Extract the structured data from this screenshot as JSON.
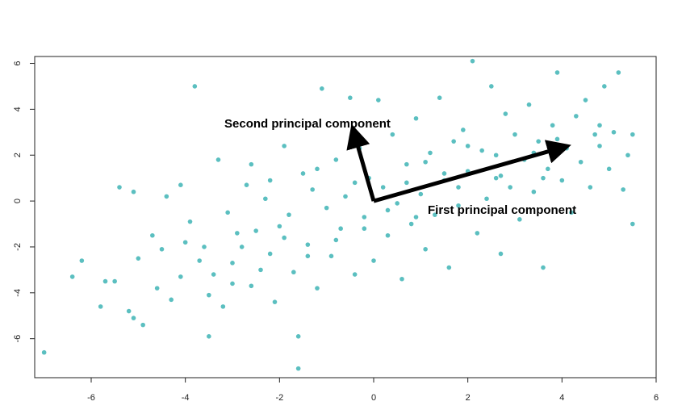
{
  "chart_data": {
    "type": "scatter",
    "xlim": [
      -7.2,
      6.0
    ],
    "ylim": [
      -7.7,
      6.3
    ],
    "x_ticks": [
      -6,
      -4,
      -2,
      0,
      2,
      4,
      6
    ],
    "y_ticks": [
      -6,
      -4,
      -2,
      0,
      2,
      4,
      6
    ],
    "point_color": "#5bbfc0",
    "arrow_color": "#000000",
    "grid": false,
    "series": [
      {
        "values": [
          [
            -7.0,
            -6.6
          ],
          [
            -6.4,
            -3.3
          ],
          [
            -6.2,
            -2.6
          ],
          [
            -5.8,
            -4.6
          ],
          [
            -5.7,
            -3.5
          ],
          [
            -5.5,
            -3.5
          ],
          [
            -5.4,
            0.6
          ],
          [
            -5.2,
            -4.8
          ],
          [
            -5.1,
            -5.1
          ],
          [
            -4.9,
            -5.4
          ],
          [
            -5.0,
            -2.5
          ],
          [
            -5.1,
            0.4
          ],
          [
            -4.7,
            -1.5
          ],
          [
            -4.6,
            -3.8
          ],
          [
            -4.5,
            -2.1
          ],
          [
            -4.4,
            0.2
          ],
          [
            -4.3,
            -4.3
          ],
          [
            -4.1,
            -3.3
          ],
          [
            -4.0,
            -1.8
          ],
          [
            -4.1,
            0.7
          ],
          [
            -3.8,
            5.0
          ],
          [
            -3.9,
            -0.9
          ],
          [
            -3.6,
            -2.0
          ],
          [
            -3.5,
            -4.1
          ],
          [
            -3.4,
            -3.2
          ],
          [
            -3.5,
            -5.9
          ],
          [
            -3.3,
            1.8
          ],
          [
            -3.1,
            -0.5
          ],
          [
            -3.0,
            -2.7
          ],
          [
            -3.0,
            -3.6
          ],
          [
            -2.8,
            -2.0
          ],
          [
            -2.7,
            0.7
          ],
          [
            -2.6,
            1.6
          ],
          [
            -2.5,
            -1.3
          ],
          [
            -2.4,
            -3.0
          ],
          [
            -2.3,
            0.1
          ],
          [
            -2.2,
            -2.3
          ],
          [
            -2.1,
            -4.4
          ],
          [
            -2.0,
            -1.1
          ],
          [
            -1.9,
            2.4
          ],
          [
            -1.8,
            -0.6
          ],
          [
            -1.7,
            -3.1
          ],
          [
            -1.6,
            -5.9
          ],
          [
            -1.6,
            -7.3
          ],
          [
            -1.5,
            1.2
          ],
          [
            -1.4,
            -1.9
          ],
          [
            -1.3,
            0.5
          ],
          [
            -1.2,
            -3.8
          ],
          [
            -1.1,
            4.9
          ],
          [
            -1.0,
            -0.3
          ],
          [
            -0.9,
            -2.4
          ],
          [
            -0.8,
            1.8
          ],
          [
            -0.7,
            -1.2
          ],
          [
            -0.6,
            0.2
          ],
          [
            -0.5,
            4.5
          ],
          [
            -0.4,
            -3.2
          ],
          [
            -0.3,
            2.3
          ],
          [
            -0.2,
            -0.7
          ],
          [
            -0.1,
            1.0
          ],
          [
            0.0,
            -2.6
          ],
          [
            0.1,
            4.4
          ],
          [
            0.2,
            0.6
          ],
          [
            0.3,
            -1.5
          ],
          [
            0.4,
            2.9
          ],
          [
            0.5,
            -0.1
          ],
          [
            0.6,
            -3.4
          ],
          [
            0.7,
            1.6
          ],
          [
            0.8,
            -1.0
          ],
          [
            0.9,
            3.6
          ],
          [
            1.0,
            0.3
          ],
          [
            1.1,
            -2.1
          ],
          [
            1.2,
            2.1
          ],
          [
            1.3,
            -0.6
          ],
          [
            1.4,
            4.5
          ],
          [
            1.5,
            0.9
          ],
          [
            1.6,
            -2.9
          ],
          [
            1.7,
            2.6
          ],
          [
            1.8,
            -0.2
          ],
          [
            1.9,
            3.1
          ],
          [
            2.0,
            1.3
          ],
          [
            2.1,
            6.1
          ],
          [
            2.2,
            -1.4
          ],
          [
            2.3,
            2.2
          ],
          [
            2.4,
            0.1
          ],
          [
            2.5,
            5.0
          ],
          [
            2.6,
            1.0
          ],
          [
            2.7,
            -2.3
          ],
          [
            2.8,
            3.8
          ],
          [
            2.9,
            0.6
          ],
          [
            3.0,
            2.9
          ],
          [
            3.1,
            -0.8
          ],
          [
            3.2,
            1.8
          ],
          [
            3.3,
            4.2
          ],
          [
            3.4,
            0.4
          ],
          [
            3.5,
            2.6
          ],
          [
            3.6,
            -2.9
          ],
          [
            3.7,
            1.4
          ],
          [
            3.8,
            3.3
          ],
          [
            3.9,
            5.6
          ],
          [
            4.0,
            0.9
          ],
          [
            4.1,
            2.3
          ],
          [
            4.2,
            -0.5
          ],
          [
            4.3,
            3.7
          ],
          [
            4.4,
            1.7
          ],
          [
            4.5,
            4.4
          ],
          [
            4.6,
            0.6
          ],
          [
            4.7,
            2.9
          ],
          [
            4.8,
            3.3
          ],
          [
            4.9,
            5.0
          ],
          [
            5.0,
            1.4
          ],
          [
            5.1,
            3.0
          ],
          [
            5.2,
            5.6
          ],
          [
            5.3,
            0.5
          ],
          [
            5.4,
            2.0
          ],
          [
            5.5,
            2.9
          ],
          [
            5.5,
            -1.0
          ],
          [
            -3.2,
            -4.6
          ],
          [
            -2.9,
            -1.4
          ],
          [
            -2.2,
            0.9
          ],
          [
            -1.9,
            -1.6
          ],
          [
            -1.2,
            1.4
          ],
          [
            -0.8,
            -1.7
          ],
          [
            -0.4,
            0.8
          ],
          [
            0.3,
            -0.4
          ],
          [
            0.7,
            0.8
          ],
          [
            1.1,
            1.7
          ],
          [
            1.5,
            1.2
          ],
          [
            2.0,
            2.4
          ],
          [
            2.6,
            2.0
          ],
          [
            3.4,
            2.1
          ],
          [
            3.9,
            2.7
          ],
          [
            4.8,
            2.4
          ],
          [
            -3.7,
            -2.6
          ],
          [
            -2.6,
            -3.7
          ],
          [
            -1.4,
            -2.4
          ],
          [
            -0.2,
            -1.2
          ],
          [
            0.9,
            -0.7
          ],
          [
            1.8,
            0.6
          ],
          [
            2.7,
            1.1
          ],
          [
            3.6,
            1.0
          ]
        ]
      }
    ],
    "annotations": [
      {
        "text": "Second principal component",
        "from": [
          0.0,
          0.0
        ],
        "to": [
          -0.4,
          2.85
        ]
      },
      {
        "text": "First principal component",
        "from": [
          0.0,
          0.0
        ],
        "to": [
          3.95,
          2.3
        ]
      }
    ]
  }
}
